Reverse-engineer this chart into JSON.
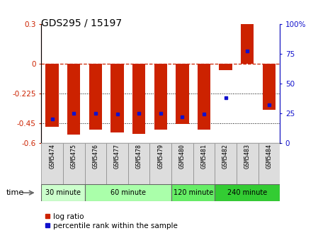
{
  "title": "GDS295 / 15197",
  "samples": [
    "GSM5474",
    "GSM5475",
    "GSM5476",
    "GSM5477",
    "GSM5478",
    "GSM5479",
    "GSM5480",
    "GSM5481",
    "GSM5482",
    "GSM5483",
    "GSM5484"
  ],
  "log_ratio": [
    -0.48,
    -0.54,
    -0.5,
    -0.52,
    -0.53,
    -0.5,
    -0.46,
    -0.5,
    -0.05,
    0.3,
    -0.35
  ],
  "percentile": [
    20,
    25,
    25,
    24,
    25,
    25,
    22,
    24,
    38,
    77,
    32
  ],
  "ylim_left": [
    -0.6,
    0.3
  ],
  "ylim_right": [
    0,
    100
  ],
  "yticks_left": [
    -0.6,
    -0.45,
    -0.225,
    0,
    0.3
  ],
  "ytick_labels_left": [
    "-0.6",
    "-0.45",
    "-0.225",
    "0",
    "0.3"
  ],
  "yticks_right": [
    0,
    25,
    50,
    75,
    100
  ],
  "ytick_labels_right": [
    "0",
    "25",
    "50",
    "75",
    "100%"
  ],
  "hlines": [
    0,
    -0.225,
    -0.45
  ],
  "hline_styles": [
    "dash",
    "dot",
    "dot"
  ],
  "bar_color": "#cc2200",
  "dot_color": "#1111cc",
  "groups": [
    {
      "label": "30 minute",
      "start": 0,
      "end": 2,
      "color": "#ccffcc"
    },
    {
      "label": "60 minute",
      "start": 2,
      "end": 6,
      "color": "#aaffaa"
    },
    {
      "label": "120 minute",
      "start": 6,
      "end": 8,
      "color": "#66ee66"
    },
    {
      "label": "240 minute",
      "start": 8,
      "end": 11,
      "color": "#33cc33"
    }
  ],
  "time_label": "time",
  "legend_bar_label": "log ratio",
  "legend_dot_label": "percentile rank within the sample",
  "bar_width": 0.6
}
